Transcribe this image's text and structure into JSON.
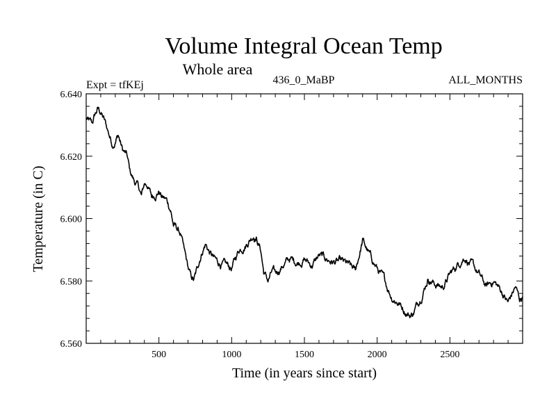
{
  "chart_data": {
    "type": "line",
    "title": "Volume Integral Ocean Temp",
    "subtitle": "Whole area",
    "left_label": "Expt = tfKEj",
    "center_label": "436_0_MaBP",
    "right_label": "ALL_MONTHS",
    "xlabel": "Time (in years since start)",
    "ylabel": "Temperature (in C)",
    "xlim": [
      0,
      3000
    ],
    "ylim": [
      6.56,
      6.64
    ],
    "x_ticks": [
      500,
      1000,
      1500,
      2000,
      2500
    ],
    "x_tick_labels": [
      "500",
      "1000",
      "1500",
      "2000",
      "2500"
    ],
    "y_ticks": [
      6.56,
      6.58,
      6.6,
      6.62,
      6.64
    ],
    "y_tick_labels": [
      "6.560",
      "6.580",
      "6.600",
      "6.620",
      "6.640"
    ],
    "grid": false,
    "line_color": "#000000",
    "series": [
      {
        "x": [
          0,
          20,
          40,
          60,
          80,
          100,
          120,
          150,
          180,
          200,
          220,
          250,
          280,
          300,
          330,
          360,
          380,
          400,
          420,
          450,
          480,
          500,
          520,
          550,
          580,
          600,
          620,
          650,
          670,
          700,
          720,
          740,
          760,
          780,
          800,
          820,
          850,
          880,
          900,
          950,
          1000,
          1050,
          1100,
          1150,
          1170,
          1200,
          1220,
          1250,
          1280,
          1300,
          1350,
          1400,
          1450,
          1500,
          1550,
          1600,
          1650,
          1700,
          1750,
          1800,
          1850,
          1880,
          1900,
          1930,
          1950,
          2000,
          2050,
          2100,
          2150,
          2200,
          2230,
          2250,
          2300,
          2350,
          2400,
          2450,
          2500,
          2550,
          2600,
          2650,
          2700,
          2750,
          2800,
          2850,
          2900,
          2950,
          2980,
          3000
        ],
        "y": [
          6.632,
          6.631,
          6.63,
          6.633,
          6.635,
          6.634,
          6.632,
          6.628,
          6.624,
          6.625,
          6.627,
          6.622,
          6.62,
          6.615,
          6.612,
          6.61,
          6.607,
          6.611,
          6.611,
          6.607,
          6.608,
          6.609,
          6.607,
          6.606,
          6.603,
          6.598,
          6.597,
          6.595,
          6.59,
          6.584,
          6.581,
          6.58,
          6.583,
          6.587,
          6.59,
          6.592,
          6.589,
          6.587,
          6.586,
          6.585,
          6.584,
          6.59,
          6.592,
          6.595,
          6.594,
          6.59,
          6.583,
          6.58,
          6.583,
          6.582,
          6.585,
          6.587,
          6.586,
          6.587,
          6.585,
          6.588,
          6.587,
          6.586,
          6.586,
          6.585,
          6.583,
          6.589,
          6.593,
          6.59,
          6.588,
          6.584,
          6.58,
          6.575,
          6.573,
          6.57,
          6.569,
          6.57,
          6.575,
          6.581,
          6.579,
          6.578,
          6.582,
          6.585,
          6.588,
          6.585,
          6.582,
          6.578,
          6.58,
          6.577,
          6.573,
          6.578,
          6.574,
          6.575
        ]
      }
    ]
  }
}
